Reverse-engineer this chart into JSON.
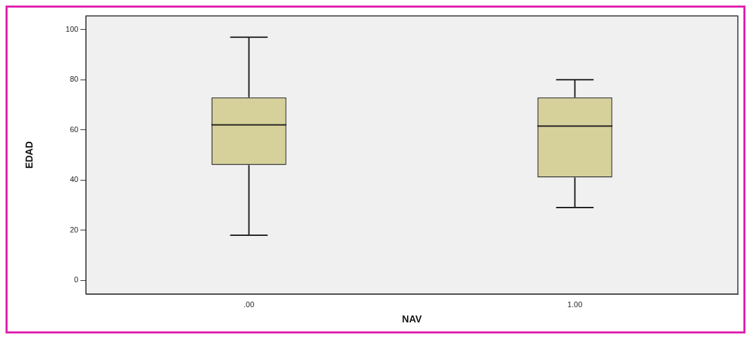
{
  "chart_data": {
    "type": "box",
    "xlabel": "NAV",
    "ylabel": "EDAD",
    "categories": [
      ".00",
      "1.00"
    ],
    "color": "#d6d09a",
    "boxes": [
      {
        "low": 18,
        "q1": 46,
        "median": 62,
        "q3": 73,
        "high": 97
      },
      {
        "low": 29,
        "q1": 41,
        "median": 61.5,
        "q3": 73,
        "high": 80
      }
    ],
    "ylim": [
      -5.5,
      105.5
    ],
    "yticks": [
      0,
      20,
      40,
      60,
      80,
      100
    ]
  }
}
